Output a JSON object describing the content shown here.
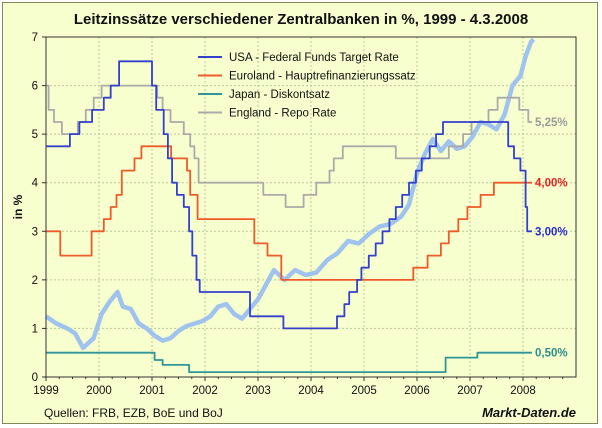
{
  "chart_data": {
    "type": "line",
    "title": "Leitzinssätze verschiedener Zentralbanken in %, 1999 - 4.3.2008",
    "xlabel": "",
    "ylabel": "in %",
    "xlim": [
      1999,
      2009
    ],
    "ylim": [
      0,
      7
    ],
    "xticks": [
      "1999",
      "2000",
      "2001",
      "2002",
      "2003",
      "2004",
      "2005",
      "2006",
      "2007",
      "2008"
    ],
    "yticks": [
      "0",
      "1",
      "2",
      "3",
      "4",
      "5",
      "6",
      "7"
    ],
    "grid": true,
    "legend_position": "top-center",
    "series": [
      {
        "name": "USA - Federal Funds Target Rate",
        "color": "#3340cc",
        "end_label": "3,00%",
        "points": [
          [
            1999.0,
            4.75
          ],
          [
            1999.45,
            4.75
          ],
          [
            1999.45,
            5.0
          ],
          [
            1999.63,
            5.0
          ],
          [
            1999.63,
            5.25
          ],
          [
            1999.87,
            5.25
          ],
          [
            1999.87,
            5.5
          ],
          [
            2000.09,
            5.5
          ],
          [
            2000.09,
            5.75
          ],
          [
            2000.22,
            5.75
          ],
          [
            2000.22,
            6.0
          ],
          [
            2000.38,
            6.0
          ],
          [
            2000.38,
            6.5
          ],
          [
            2001.0,
            6.5
          ],
          [
            2001.0,
            6.0
          ],
          [
            2001.08,
            6.0
          ],
          [
            2001.08,
            5.5
          ],
          [
            2001.22,
            5.5
          ],
          [
            2001.22,
            5.0
          ],
          [
            2001.3,
            5.0
          ],
          [
            2001.3,
            4.5
          ],
          [
            2001.38,
            4.5
          ],
          [
            2001.38,
            4.0
          ],
          [
            2001.47,
            4.0
          ],
          [
            2001.47,
            3.75
          ],
          [
            2001.6,
            3.75
          ],
          [
            2001.6,
            3.5
          ],
          [
            2001.7,
            3.5
          ],
          [
            2001.7,
            3.0
          ],
          [
            2001.76,
            3.0
          ],
          [
            2001.76,
            2.5
          ],
          [
            2001.84,
            2.5
          ],
          [
            2001.84,
            2.0
          ],
          [
            2001.9,
            2.0
          ],
          [
            2001.9,
            1.75
          ],
          [
            2002.85,
            1.75
          ],
          [
            2002.85,
            1.25
          ],
          [
            2003.48,
            1.25
          ],
          [
            2003.48,
            1.0
          ],
          [
            2004.49,
            1.0
          ],
          [
            2004.49,
            1.25
          ],
          [
            2004.63,
            1.25
          ],
          [
            2004.63,
            1.5
          ],
          [
            2004.72,
            1.5
          ],
          [
            2004.72,
            1.75
          ],
          [
            2004.87,
            1.75
          ],
          [
            2004.87,
            2.0
          ],
          [
            2004.95,
            2.0
          ],
          [
            2004.95,
            2.25
          ],
          [
            2005.09,
            2.25
          ],
          [
            2005.09,
            2.5
          ],
          [
            2005.22,
            2.5
          ],
          [
            2005.22,
            2.75
          ],
          [
            2005.35,
            2.75
          ],
          [
            2005.35,
            3.0
          ],
          [
            2005.48,
            3.0
          ],
          [
            2005.48,
            3.25
          ],
          [
            2005.6,
            3.25
          ],
          [
            2005.6,
            3.5
          ],
          [
            2005.72,
            3.5
          ],
          [
            2005.72,
            3.75
          ],
          [
            2005.85,
            3.75
          ],
          [
            2005.85,
            4.0
          ],
          [
            2005.98,
            4.0
          ],
          [
            2005.98,
            4.25
          ],
          [
            2006.09,
            4.25
          ],
          [
            2006.09,
            4.5
          ],
          [
            2006.24,
            4.5
          ],
          [
            2006.24,
            4.75
          ],
          [
            2006.36,
            4.75
          ],
          [
            2006.36,
            5.0
          ],
          [
            2006.49,
            5.0
          ],
          [
            2006.49,
            5.25
          ],
          [
            2007.72,
            5.25
          ],
          [
            2007.72,
            4.75
          ],
          [
            2007.83,
            4.75
          ],
          [
            2007.83,
            4.5
          ],
          [
            2007.95,
            4.5
          ],
          [
            2007.95,
            4.25
          ],
          [
            2008.05,
            4.25
          ],
          [
            2008.05,
            3.5
          ],
          [
            2008.08,
            3.5
          ],
          [
            2008.08,
            3.0
          ],
          [
            2008.17,
            3.0
          ]
        ]
      },
      {
        "name": "Euroland - Hauptrefinanzierungssatz",
        "color": "#f05a28",
        "end_label": "4,00%",
        "points": [
          [
            1999.0,
            3.0
          ],
          [
            1999.27,
            3.0
          ],
          [
            1999.27,
            2.5
          ],
          [
            1999.86,
            2.5
          ],
          [
            1999.86,
            3.0
          ],
          [
            2000.09,
            3.0
          ],
          [
            2000.09,
            3.25
          ],
          [
            2000.22,
            3.25
          ],
          [
            2000.22,
            3.5
          ],
          [
            2000.33,
            3.5
          ],
          [
            2000.33,
            3.75
          ],
          [
            2000.43,
            3.75
          ],
          [
            2000.43,
            4.25
          ],
          [
            2000.67,
            4.25
          ],
          [
            2000.67,
            4.5
          ],
          [
            2000.8,
            4.5
          ],
          [
            2000.8,
            4.75
          ],
          [
            2001.36,
            4.75
          ],
          [
            2001.36,
            4.5
          ],
          [
            2001.66,
            4.5
          ],
          [
            2001.66,
            4.25
          ],
          [
            2001.72,
            4.25
          ],
          [
            2001.72,
            3.75
          ],
          [
            2001.86,
            3.75
          ],
          [
            2001.86,
            3.25
          ],
          [
            2002.93,
            3.25
          ],
          [
            2002.93,
            2.75
          ],
          [
            2003.18,
            2.75
          ],
          [
            2003.18,
            2.5
          ],
          [
            2003.44,
            2.5
          ],
          [
            2003.44,
            2.0
          ],
          [
            2005.93,
            2.0
          ],
          [
            2005.93,
            2.25
          ],
          [
            2006.2,
            2.25
          ],
          [
            2006.2,
            2.5
          ],
          [
            2006.45,
            2.5
          ],
          [
            2006.45,
            2.75
          ],
          [
            2006.6,
            2.75
          ],
          [
            2006.6,
            3.0
          ],
          [
            2006.78,
            3.0
          ],
          [
            2006.78,
            3.25
          ],
          [
            2006.95,
            3.25
          ],
          [
            2006.95,
            3.5
          ],
          [
            2007.2,
            3.5
          ],
          [
            2007.2,
            3.75
          ],
          [
            2007.45,
            3.75
          ],
          [
            2007.45,
            4.0
          ],
          [
            2008.17,
            4.0
          ]
        ]
      },
      {
        "name": "Japan - Diskontsatz",
        "color": "#2e9696",
        "end_label": "0,50%",
        "points": [
          [
            1999.0,
            0.5
          ],
          [
            2001.05,
            0.5
          ],
          [
            2001.05,
            0.35
          ],
          [
            2001.2,
            0.35
          ],
          [
            2001.2,
            0.25
          ],
          [
            2001.7,
            0.25
          ],
          [
            2001.7,
            0.1
          ],
          [
            2006.54,
            0.1
          ],
          [
            2006.54,
            0.4
          ],
          [
            2007.14,
            0.4
          ],
          [
            2007.14,
            0.5
          ],
          [
            2008.17,
            0.5
          ]
        ]
      },
      {
        "name": "England - Repo Rate",
        "color": "#aaaaaa",
        "end_label": "5,25%",
        "points": [
          [
            1999.0,
            6.0
          ],
          [
            1999.05,
            6.0
          ],
          [
            1999.05,
            5.5
          ],
          [
            1999.15,
            5.5
          ],
          [
            1999.15,
            5.25
          ],
          [
            1999.3,
            5.25
          ],
          [
            1999.3,
            5.0
          ],
          [
            1999.6,
            5.0
          ],
          [
            1999.6,
            5.25
          ],
          [
            1999.75,
            5.25
          ],
          [
            1999.75,
            5.5
          ],
          [
            1999.9,
            5.5
          ],
          [
            1999.9,
            5.75
          ],
          [
            2000.05,
            5.75
          ],
          [
            2000.05,
            6.0
          ],
          [
            2001.1,
            6.0
          ],
          [
            2001.1,
            5.75
          ],
          [
            2001.2,
            5.75
          ],
          [
            2001.2,
            5.5
          ],
          [
            2001.35,
            5.5
          ],
          [
            2001.35,
            5.25
          ],
          [
            2001.6,
            5.25
          ],
          [
            2001.6,
            5.0
          ],
          [
            2001.72,
            5.0
          ],
          [
            2001.72,
            4.75
          ],
          [
            2001.8,
            4.75
          ],
          [
            2001.8,
            4.5
          ],
          [
            2001.88,
            4.5
          ],
          [
            2001.88,
            4.0
          ],
          [
            2003.1,
            4.0
          ],
          [
            2003.1,
            3.75
          ],
          [
            2003.52,
            3.75
          ],
          [
            2003.52,
            3.5
          ],
          [
            2003.86,
            3.5
          ],
          [
            2003.86,
            3.75
          ],
          [
            2004.1,
            3.75
          ],
          [
            2004.1,
            4.0
          ],
          [
            2004.35,
            4.0
          ],
          [
            2004.35,
            4.25
          ],
          [
            2004.43,
            4.25
          ],
          [
            2004.43,
            4.5
          ],
          [
            2004.6,
            4.5
          ],
          [
            2004.6,
            4.75
          ],
          [
            2005.6,
            4.75
          ],
          [
            2005.6,
            4.5
          ],
          [
            2006.6,
            4.5
          ],
          [
            2006.6,
            4.75
          ],
          [
            2006.87,
            4.75
          ],
          [
            2006.87,
            5.0
          ],
          [
            2007.03,
            5.0
          ],
          [
            2007.03,
            5.25
          ],
          [
            2007.35,
            5.25
          ],
          [
            2007.35,
            5.5
          ],
          [
            2007.52,
            5.5
          ],
          [
            2007.52,
            5.75
          ],
          [
            2007.93,
            5.75
          ],
          [
            2007.93,
            5.5
          ],
          [
            2008.1,
            5.5
          ],
          [
            2008.1,
            5.25
          ],
          [
            2008.17,
            5.25
          ]
        ]
      },
      {
        "name": "",
        "color": "#9fc2ef",
        "end_label": "",
        "points": [
          [
            1999.0,
            1.25
          ],
          [
            1999.2,
            1.1
          ],
          [
            1999.4,
            1.0
          ],
          [
            1999.55,
            0.9
          ],
          [
            1999.7,
            0.6
          ],
          [
            1999.9,
            0.8
          ],
          [
            2000.05,
            1.3
          ],
          [
            2000.2,
            1.55
          ],
          [
            2000.35,
            1.75
          ],
          [
            2000.45,
            1.45
          ],
          [
            2000.6,
            1.4
          ],
          [
            2000.75,
            1.1
          ],
          [
            2000.9,
            1.0
          ],
          [
            2001.05,
            0.85
          ],
          [
            2001.2,
            0.75
          ],
          [
            2001.35,
            0.8
          ],
          [
            2001.5,
            0.95
          ],
          [
            2001.65,
            1.05
          ],
          [
            2001.8,
            1.1
          ],
          [
            2001.95,
            1.15
          ],
          [
            2002.1,
            1.25
          ],
          [
            2002.25,
            1.45
          ],
          [
            2002.4,
            1.5
          ],
          [
            2002.55,
            1.3
          ],
          [
            2002.7,
            1.2
          ],
          [
            2002.85,
            1.4
          ],
          [
            2003.0,
            1.6
          ],
          [
            2003.15,
            1.9
          ],
          [
            2003.3,
            2.2
          ],
          [
            2003.5,
            2.0
          ],
          [
            2003.7,
            2.2
          ],
          [
            2003.9,
            2.1
          ],
          [
            2004.1,
            2.15
          ],
          [
            2004.3,
            2.4
          ],
          [
            2004.5,
            2.55
          ],
          [
            2004.7,
            2.8
          ],
          [
            2004.9,
            2.75
          ],
          [
            2005.1,
            2.95
          ],
          [
            2005.3,
            3.1
          ],
          [
            2005.5,
            3.15
          ],
          [
            2005.7,
            3.3
          ],
          [
            2005.85,
            3.55
          ],
          [
            2006.0,
            4.2
          ],
          [
            2006.15,
            4.6
          ],
          [
            2006.3,
            4.9
          ],
          [
            2006.45,
            4.65
          ],
          [
            2006.6,
            4.85
          ],
          [
            2006.75,
            4.7
          ],
          [
            2006.9,
            4.75
          ],
          [
            2007.05,
            4.95
          ],
          [
            2007.2,
            5.25
          ],
          [
            2007.35,
            5.2
          ],
          [
            2007.5,
            5.1
          ],
          [
            2007.65,
            5.4
          ],
          [
            2007.8,
            6.0
          ],
          [
            2007.95,
            6.2
          ],
          [
            2008.05,
            6.6
          ],
          [
            2008.15,
            6.9
          ],
          [
            2008.2,
            6.95
          ]
        ]
      }
    ]
  },
  "footer": {
    "sources": "Quellen: FRB, EZB, BoE und BoJ",
    "brand": "Markt-Daten.de"
  }
}
